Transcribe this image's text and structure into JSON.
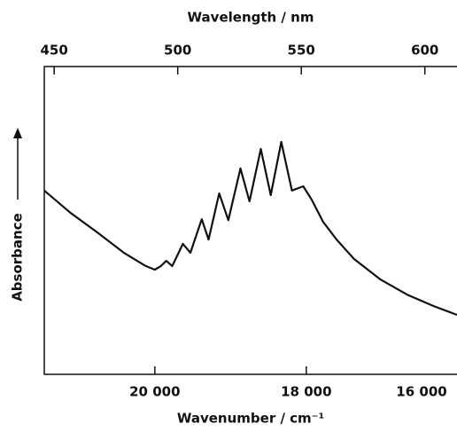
{
  "chart_data": {
    "type": "line",
    "title_top": "Wavelength / nm",
    "xlabel": "Wavenumber / cm⁻¹",
    "ylabel": "Absorbance",
    "x": [
      21460,
      21110,
      20760,
      20410,
      20120,
      20000,
      19920,
      19850,
      19770,
      19630,
      19530,
      19380,
      19290,
      19150,
      19030,
      18870,
      18750,
      18600,
      18470,
      18330,
      18190,
      18040,
      17930,
      17780,
      17600,
      17370,
      17020,
      16670,
      16320,
      16010
    ],
    "series": [
      {
        "color": "#111111",
        "values": [
          59.7,
          52.4,
          46.1,
          39.5,
          35.2,
          34.0,
          35.2,
          36.9,
          35.2,
          42.4,
          39.5,
          50.4,
          43.8,
          58.8,
          50.1,
          66.9,
          56.2,
          73.2,
          58.2,
          75.5,
          59.7,
          61.1,
          56.8,
          49.6,
          43.8,
          37.5,
          30.8,
          25.9,
          22.2,
          19.3
        ]
      }
    ],
    "xlim": [
      21460,
      16010
    ],
    "xticks": [
      {
        "value": 20000,
        "label": "20 000"
      },
      {
        "value": 18000,
        "label": "18 000"
      },
      {
        "value": 16000,
        "label": "16 000"
      }
    ],
    "x2lim": [
      446,
      613
    ],
    "x2ticks": [
      450,
      500,
      550,
      600
    ],
    "ylim": [
      0,
      100
    ]
  }
}
